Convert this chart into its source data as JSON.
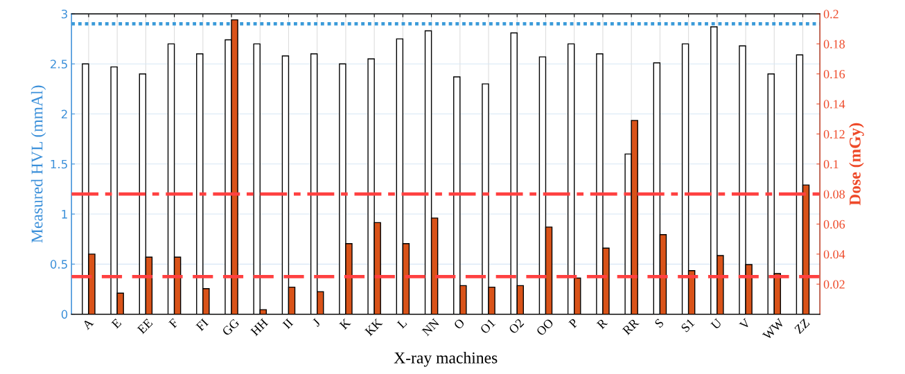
{
  "chart_data": {
    "type": "bar",
    "xlabel": "X-ray machines",
    "ylabel": "Measured HVL (mmAl)",
    "y2label": "Dose (mGy)",
    "categories": [
      "A",
      "E",
      "EE",
      "F",
      "FI",
      "GG",
      "HH",
      "II",
      "J",
      "K",
      "KK",
      "L",
      "NN",
      "O",
      "O1",
      "O2",
      "OO",
      "P",
      "R",
      "RR",
      "S",
      "S1",
      "U",
      "V",
      "WW",
      "ZZ"
    ],
    "series": [
      {
        "color": "#ffffff",
        "values": [
          2.5,
          2.47,
          2.4,
          2.7,
          2.6,
          2.74,
          2.7,
          2.58,
          2.6,
          2.5,
          2.55,
          2.75,
          2.83,
          2.37,
          2.3,
          2.81,
          2.57,
          2.7,
          2.6,
          1.6,
          2.51,
          2.7,
          2.87,
          2.68,
          2.4,
          2.59
        ]
      },
      {
        "color": "#d95319",
        "axis": "y2",
        "values": [
          0.04,
          0.014,
          0.038,
          0.038,
          0.017,
          0.196,
          0.003,
          0.018,
          0.015,
          0.047,
          0.061,
          0.047,
          0.064,
          0.019,
          0.018,
          0.019,
          0.058,
          0.024,
          0.044,
          0.129,
          0.053,
          0.029,
          0.039,
          0.033,
          0.027,
          0.086
        ]
      }
    ],
    "ylim": [
      0,
      3
    ],
    "yticks": [
      0,
      0.5,
      1,
      1.5,
      2,
      2.5,
      3
    ],
    "y2lim": [
      0,
      0.2
    ],
    "y2ticks": [
      0.02,
      0.04,
      0.06,
      0.08,
      0.1,
      0.12,
      0.14,
      0.16,
      0.18,
      0.2
    ],
    "ref_lines": [
      {
        "axis": "y",
        "value": 2.9,
        "color": "#3a9ad9",
        "line_style": "dotted"
      },
      {
        "axis": "y2",
        "value": 0.08,
        "color": "#ff4040",
        "line_style": "dashdot"
      },
      {
        "axis": "y2",
        "value": 0.025,
        "color": "#ff4040",
        "line_style": "dashed"
      }
    ],
    "grid": true
  }
}
